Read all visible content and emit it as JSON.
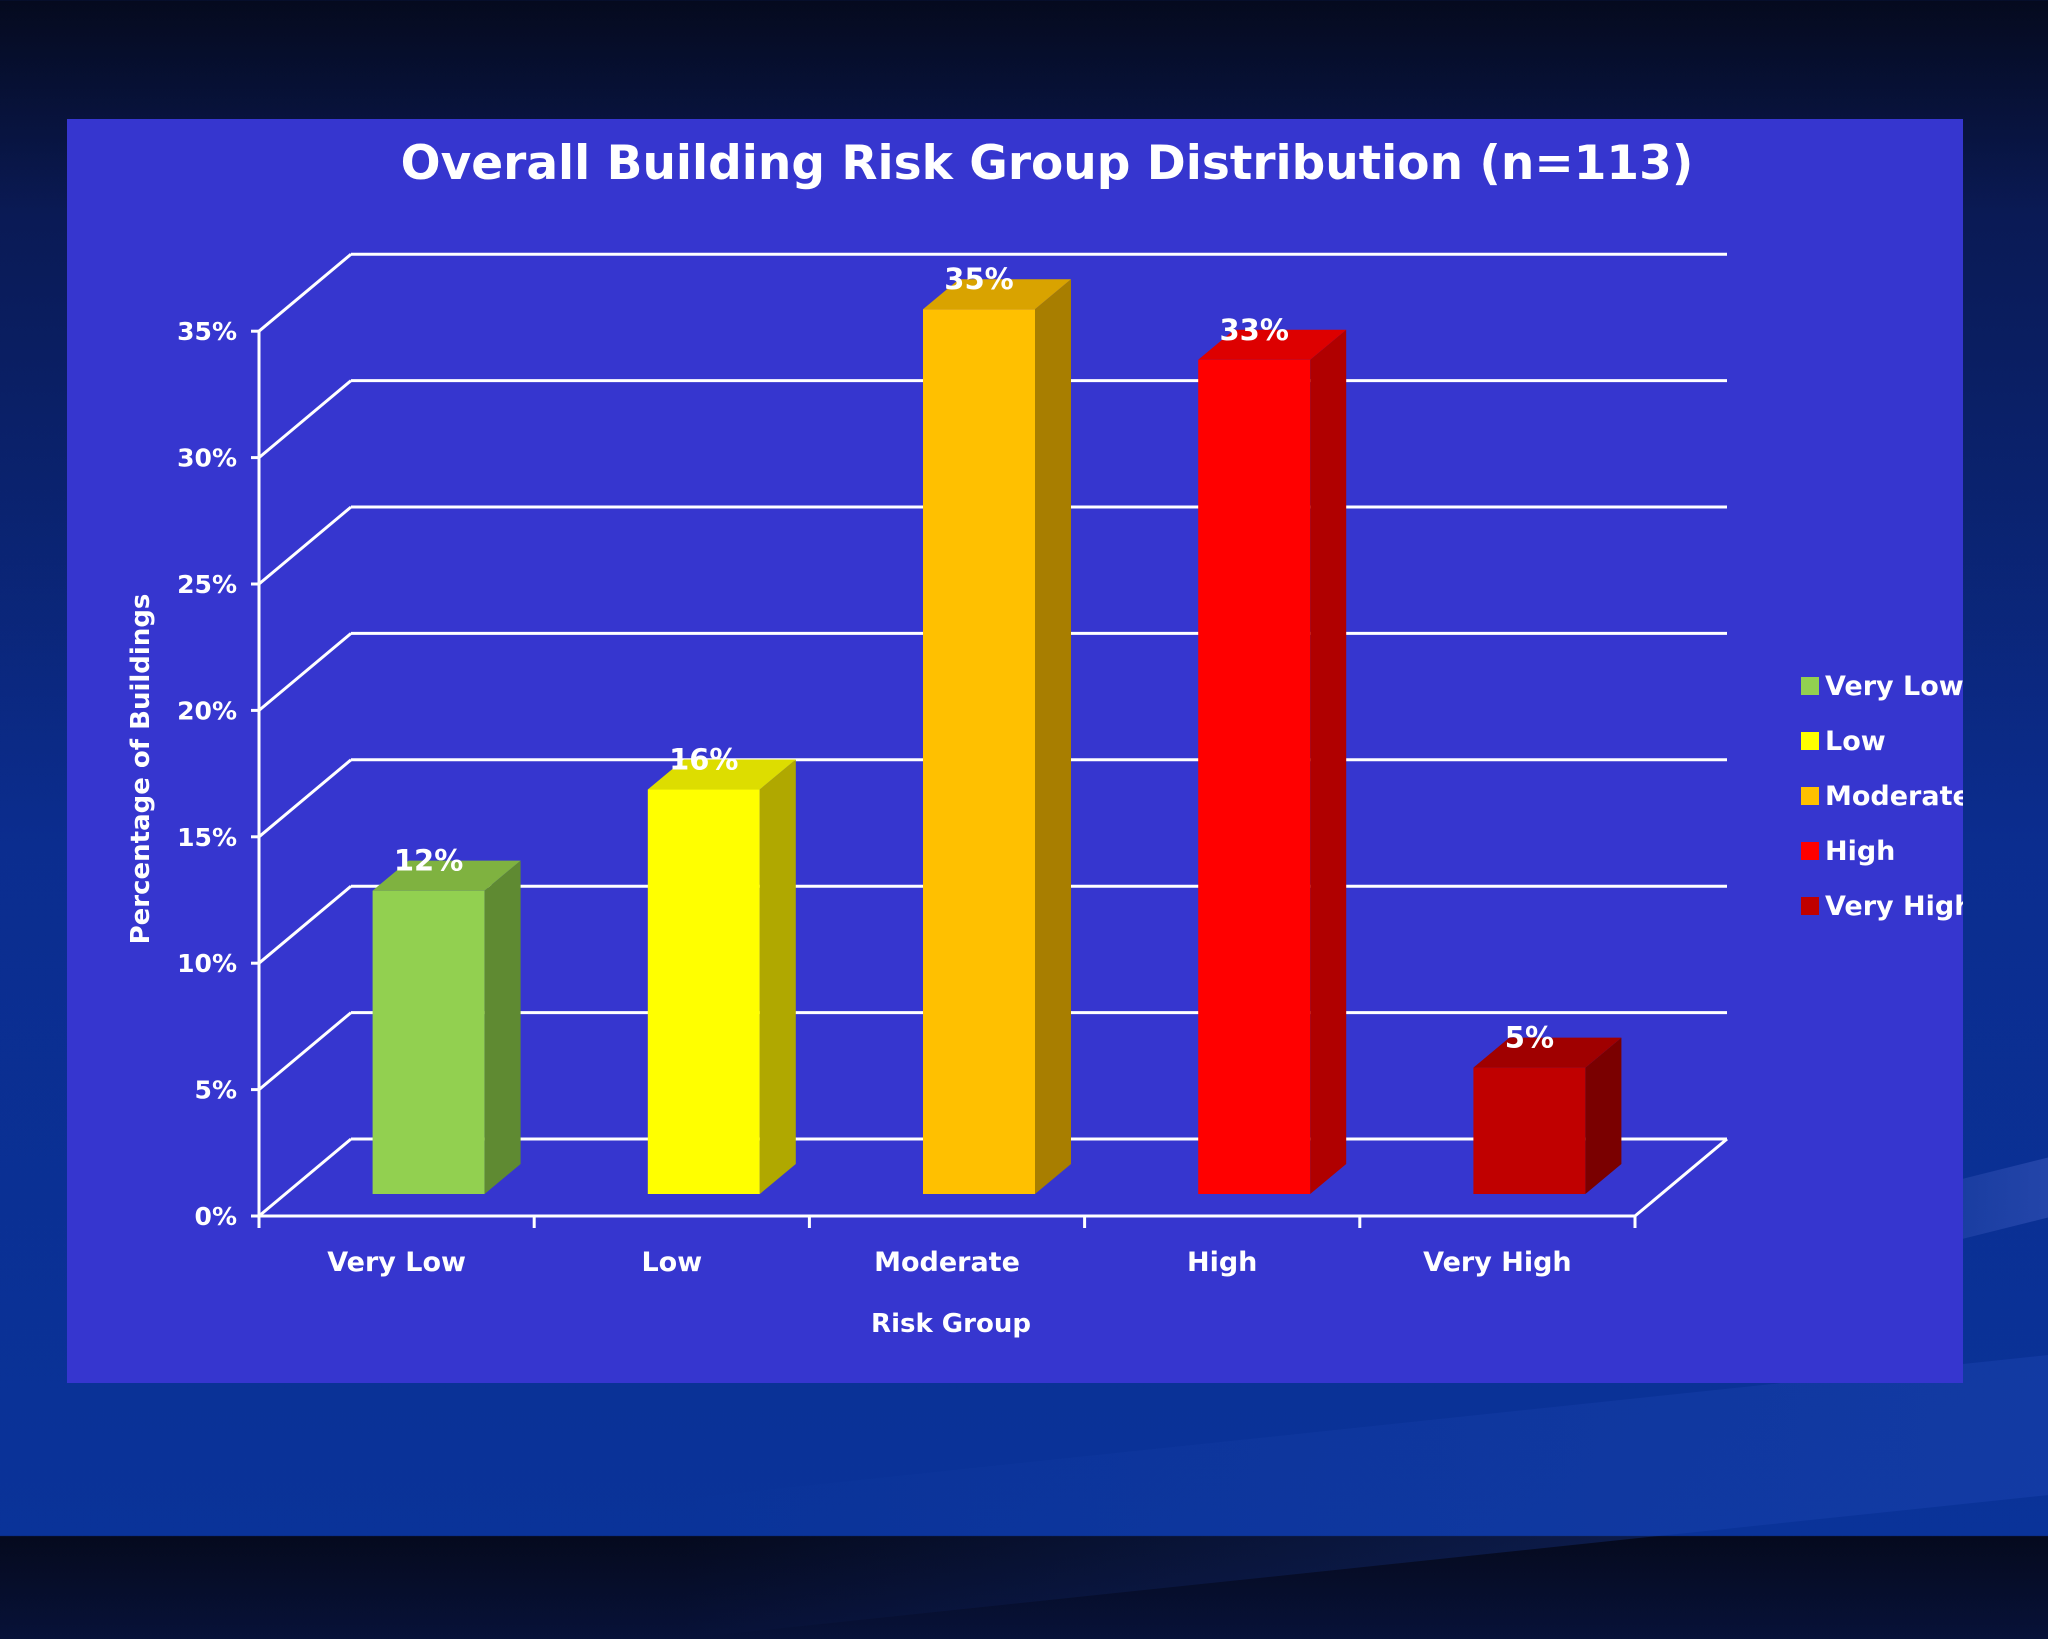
{
  "chart_data": {
    "type": "bar",
    "title": "Overall Building Risk Group Distribution (n=113)",
    "xlabel": "Risk Group",
    "ylabel": "Percentage of Buildings",
    "categories": [
      "Very Low",
      "Low",
      "Moderate",
      "High",
      "Very High"
    ],
    "values": [
      12,
      16,
      35,
      33,
      5
    ],
    "value_labels": [
      "12%",
      "16%",
      "35%",
      "33%",
      "5%"
    ],
    "colors": [
      "#92d050",
      "#ffff00",
      "#ffc000",
      "#ff0000",
      "#c00000"
    ],
    "side_colors": [
      "#5f8a32",
      "#b0a800",
      "#a87e00",
      "#b00000",
      "#7a0000"
    ],
    "top_colors": [
      "#7fb240",
      "#dddd00",
      "#d9a300",
      "#dd0000",
      "#a00000"
    ],
    "ylim": [
      0,
      35
    ],
    "yticks": [
      0,
      5,
      10,
      15,
      20,
      25,
      30,
      35
    ],
    "ytick_labels": [
      "0%",
      "5%",
      "10%",
      "15%",
      "20%",
      "25%",
      "30%",
      "35%"
    ],
    "grid": true,
    "legend_position": "right",
    "legend": [
      "Very Low",
      "Low",
      "Moderate",
      "High",
      "Very High"
    ],
    "background": "#3636cf",
    "style": "3d-column"
  }
}
